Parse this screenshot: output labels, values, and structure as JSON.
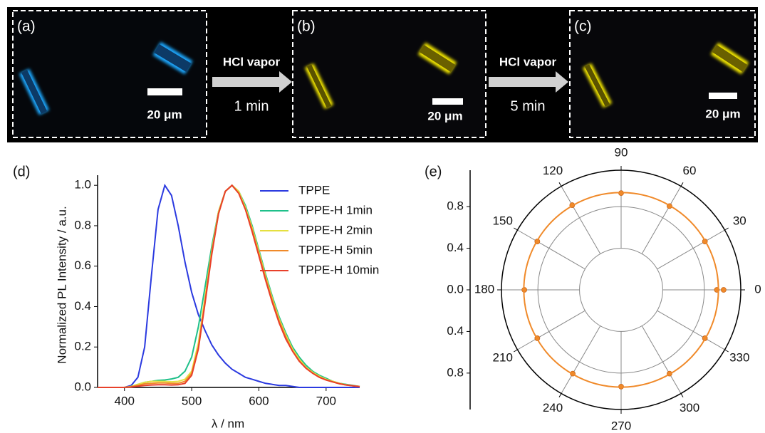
{
  "panels": [
    {
      "label": "(a)",
      "scale_bar": "20 μm"
    },
    {
      "label": "(b)",
      "scale_bar": "20 μm"
    },
    {
      "label": "(c)",
      "scale_bar": "20 μm"
    }
  ],
  "arrows": [
    {
      "label": "HCl vapor",
      "time": "1 min"
    },
    {
      "label": "HCl vapor",
      "time": "5 min"
    }
  ],
  "chart_data": [
    {
      "type": "line",
      "label": "(d)",
      "xlabel": "λ / nm",
      "ylabel": "Normalized PL Intensity / a.u.",
      "x": [
        360,
        370,
        380,
        390,
        400,
        410,
        420,
        430,
        440,
        450,
        460,
        470,
        480,
        490,
        500,
        510,
        520,
        530,
        540,
        550,
        560,
        570,
        580,
        590,
        600,
        610,
        620,
        630,
        640,
        650,
        660,
        670,
        680,
        690,
        700,
        710,
        720,
        730,
        740,
        750
      ],
      "series": [
        {
          "name": "TPPE",
          "color": "#2b3ae0",
          "values": [
            0,
            0,
            0,
            0,
            0,
            0.01,
            0.05,
            0.2,
            0.55,
            0.88,
            1.0,
            0.95,
            0.8,
            0.62,
            0.47,
            0.36,
            0.28,
            0.21,
            0.16,
            0.12,
            0.09,
            0.07,
            0.05,
            0.04,
            0.03,
            0.02,
            0.015,
            0.01,
            0.01,
            0.005,
            0,
            0,
            0,
            0,
            0,
            0,
            0,
            0,
            0,
            0
          ]
        },
        {
          "name": "TPPE-H 1min",
          "color": "#1fc08a",
          "values": [
            0,
            0,
            0,
            0,
            0,
            0.005,
            0.015,
            0.025,
            0.03,
            0.035,
            0.037,
            0.042,
            0.05,
            0.08,
            0.15,
            0.3,
            0.5,
            0.7,
            0.87,
            0.97,
            1.0,
            0.97,
            0.9,
            0.8,
            0.68,
            0.56,
            0.45,
            0.35,
            0.27,
            0.2,
            0.15,
            0.11,
            0.08,
            0.06,
            0.045,
            0.03,
            0.02,
            0.015,
            0.01,
            0.005
          ]
        },
        {
          "name": "TPPE-H 2min",
          "color": "#e5e040",
          "values": [
            0,
            0,
            0,
            0,
            0,
            0.005,
            0.015,
            0.025,
            0.03,
            0.03,
            0.03,
            0.028,
            0.03,
            0.04,
            0.08,
            0.22,
            0.45,
            0.68,
            0.87,
            0.97,
            1.0,
            0.97,
            0.89,
            0.79,
            0.67,
            0.55,
            0.44,
            0.34,
            0.26,
            0.19,
            0.14,
            0.1,
            0.075,
            0.055,
            0.04,
            0.03,
            0.02,
            0.013,
            0.008,
            0.005
          ]
        },
        {
          "name": "TPPE-H 5min",
          "color": "#f08a2a",
          "values": [
            0,
            0,
            0,
            0,
            0,
            0.003,
            0.01,
            0.018,
            0.02,
            0.022,
            0.022,
            0.02,
            0.02,
            0.03,
            0.07,
            0.2,
            0.43,
            0.67,
            0.86,
            0.97,
            1.0,
            0.96,
            0.88,
            0.78,
            0.66,
            0.54,
            0.43,
            0.33,
            0.25,
            0.18,
            0.13,
            0.095,
            0.07,
            0.05,
            0.037,
            0.027,
            0.018,
            0.012,
            0.008,
            0.004
          ]
        },
        {
          "name": "TPPE-H 10min",
          "color": "#e8412b",
          "values": [
            0,
            0,
            0,
            0,
            0,
            0.002,
            0.006,
            0.01,
            0.012,
            0.013,
            0.013,
            0.012,
            0.013,
            0.02,
            0.06,
            0.19,
            0.42,
            0.66,
            0.86,
            0.97,
            1.0,
            0.96,
            0.88,
            0.77,
            0.65,
            0.53,
            0.42,
            0.32,
            0.24,
            0.18,
            0.13,
            0.095,
            0.07,
            0.05,
            0.037,
            0.027,
            0.018,
            0.012,
            0.008,
            0.004
          ]
        }
      ],
      "xlim": [
        360,
        750
      ],
      "xticks": [
        400,
        500,
        600,
        700
      ],
      "ylim": [
        0,
        1.05
      ],
      "yticks": [
        {
          "value": 0,
          "label": "0.0"
        },
        0.2,
        0.4,
        0.6,
        0.8,
        {
          "value": 1,
          "label": "1.0"
        }
      ],
      "legend": "upper right"
    },
    {
      "type": "polar",
      "label": "(e)",
      "rlim": [
        0,
        1.15
      ],
      "rticks": [
        {
          "value": 0,
          "label": "0.0"
        },
        0.4,
        0.8
      ],
      "thetaticks": [
        0,
        30,
        60,
        90,
        120,
        150,
        180,
        210,
        240,
        270,
        300,
        330
      ],
      "series": [
        {
          "style": "markers",
          "color": "#f08a2a",
          "theta": [
            0,
            30,
            60,
            90,
            120,
            150,
            180,
            210,
            240,
            270,
            300,
            330,
            360
          ],
          "r": [
            0.92,
            0.93,
            0.93,
            0.93,
            0.94,
            0.93,
            0.93,
            0.93,
            0.93,
            0.93,
            0.93,
            0.93,
            0.985
          ]
        },
        {
          "style": "line",
          "color": "#f08a2a",
          "theta": [
            0,
            30,
            60,
            90,
            120,
            150,
            180,
            210,
            240,
            270,
            300,
            330,
            360
          ],
          "r": [
            0.935,
            0.935,
            0.935,
            0.935,
            0.935,
            0.935,
            0.935,
            0.935,
            0.935,
            0.935,
            0.935,
            0.935,
            0.935
          ]
        }
      ]
    }
  ]
}
